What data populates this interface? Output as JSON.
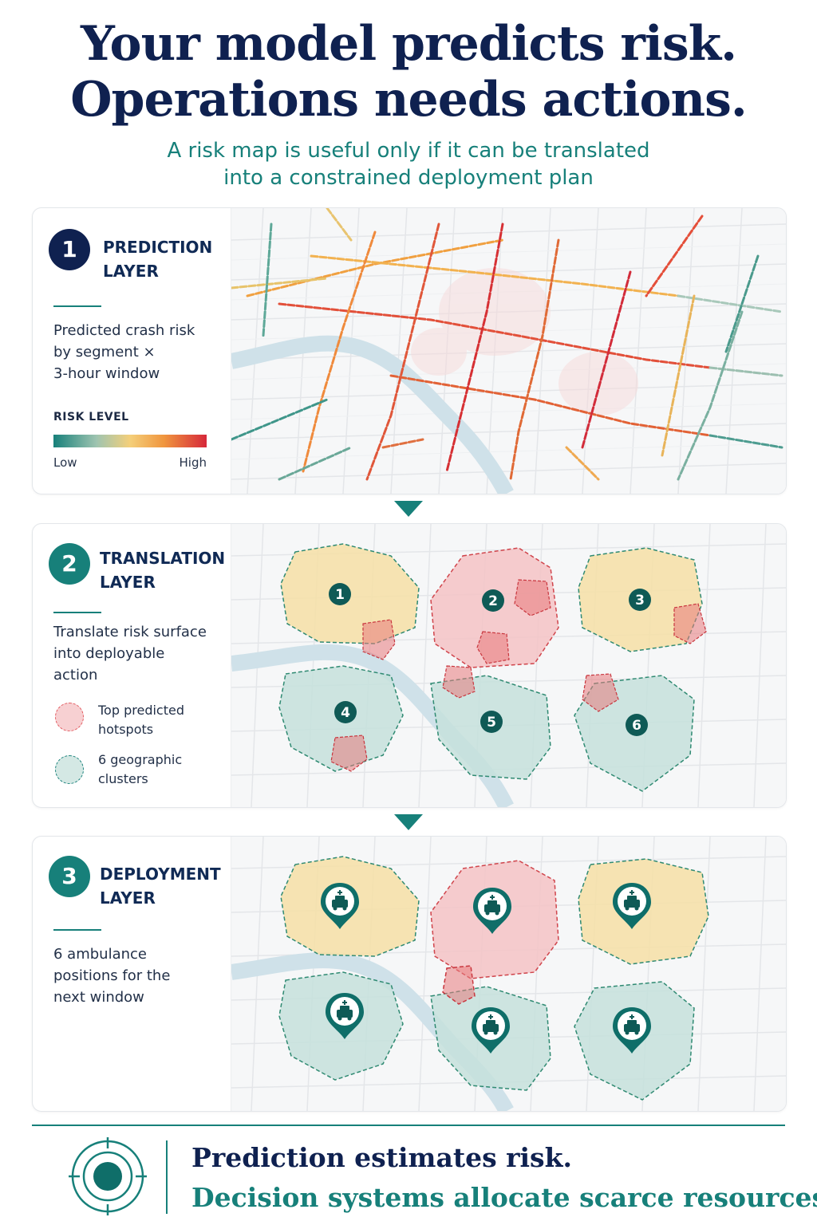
{
  "header": {
    "title_line1": "Your model predicts risk.",
    "title_line2": "Operations needs actions.",
    "subtitle_line1": "A risk map is useful only if it can be translated",
    "subtitle_line2": "into a constrained deployment plan"
  },
  "layers": [
    {
      "number": "1",
      "title_line1": "PREDICTION",
      "title_line2": "LAYER",
      "desc_lines": [
        "Predicted crash risk",
        "by segment ×",
        "3-hour window"
      ],
      "risk_legend": {
        "label": "RISK LEVEL",
        "low": "Low",
        "high": "High"
      }
    },
    {
      "number": "2",
      "title_line1": "TRANSLATION",
      "title_line2": "LAYER",
      "desc_lines": [
        "Translate risk surface",
        "into deployable",
        "action"
      ],
      "legend": [
        {
          "text_line1": "Top predicted",
          "text_line2": "hotspots",
          "color": "#e2585e"
        },
        {
          "text_line1": "6 geographic",
          "text_line2": "clusters",
          "color": "#17807a"
        }
      ],
      "cluster_labels": [
        "1",
        "2",
        "3",
        "4",
        "5",
        "6"
      ]
    },
    {
      "number": "3",
      "title_line1": "DEPLOYMENT",
      "title_line2": "LAYER",
      "desc_lines": [
        "6 ambulance",
        "positions for the",
        "next window"
      ]
    }
  ],
  "footer": {
    "line1": "Prediction estimates risk.",
    "line2": "Decision systems allocate scarce resources."
  },
  "colors": {
    "navy": "#0f2150",
    "teal": "#17807a",
    "risk_low": "#17807a",
    "risk_mid": "#f4cf7a",
    "risk_high": "#d6283a",
    "cluster_orange": "#f6dfa6",
    "cluster_red": "#f4c3c5",
    "cluster_teal": "#c6e1dc"
  },
  "icons": [
    "ambulance-pin-icon",
    "target-icon",
    "triangle-down-arrow-icon"
  ]
}
